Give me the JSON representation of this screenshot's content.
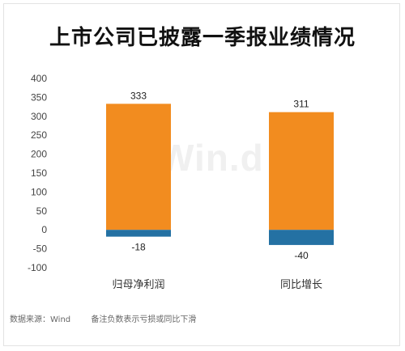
{
  "title": "上市公司已披露一季报业绩情况",
  "watermark": "Win.d",
  "footer": {
    "source": "数据来源：Wind",
    "note": "备注负数表示亏损或同比下滑"
  },
  "colors": {
    "positive": "#f28c1f",
    "negative": "#2471a3",
    "axis_text": "#444444"
  },
  "chart_data": {
    "type": "bar",
    "stacked": true,
    "categories": [
      "归母净利润",
      "同比增长"
    ],
    "series": [
      {
        "values": [
          333,
          311
        ]
      },
      {
        "values": [
          -18,
          -40
        ]
      }
    ],
    "ylim": [
      -100,
      400
    ],
    "yticks": [
      400,
      350,
      300,
      250,
      200,
      150,
      100,
      50,
      0,
      -50,
      -100
    ],
    "grid": false,
    "legend": "none",
    "xlabel": "",
    "ylabel": ""
  }
}
